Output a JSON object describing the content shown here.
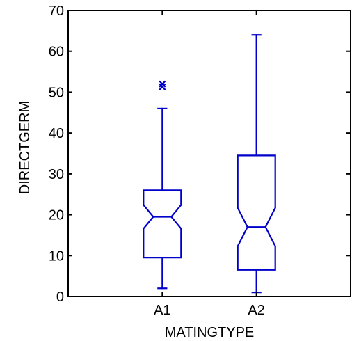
{
  "chart_data": {
    "type": "boxplot",
    "notched": true,
    "xlabel": "MATINGTYPE",
    "ylabel": "DIRECTGERM",
    "ylim": [
      0,
      70
    ],
    "yticks": [
      0,
      10,
      20,
      30,
      40,
      50,
      60,
      70
    ],
    "grid": false,
    "legend": "none",
    "box_color": "#0000cc",
    "categories": [
      "A1",
      "A2"
    ],
    "boxes": [
      {
        "category": "A1",
        "min": 2,
        "q1": 9.5,
        "median": 19.5,
        "q3": 26,
        "max": 46,
        "notch_low": 16.6,
        "notch_high": 22.4,
        "outliers": [
          51.3,
          52
        ]
      },
      {
        "category": "A2",
        "min": 1,
        "q1": 6.5,
        "median": 17,
        "q3": 34.5,
        "max": 64,
        "notch_low": 12.3,
        "notch_high": 21.7,
        "outliers": []
      }
    ]
  }
}
